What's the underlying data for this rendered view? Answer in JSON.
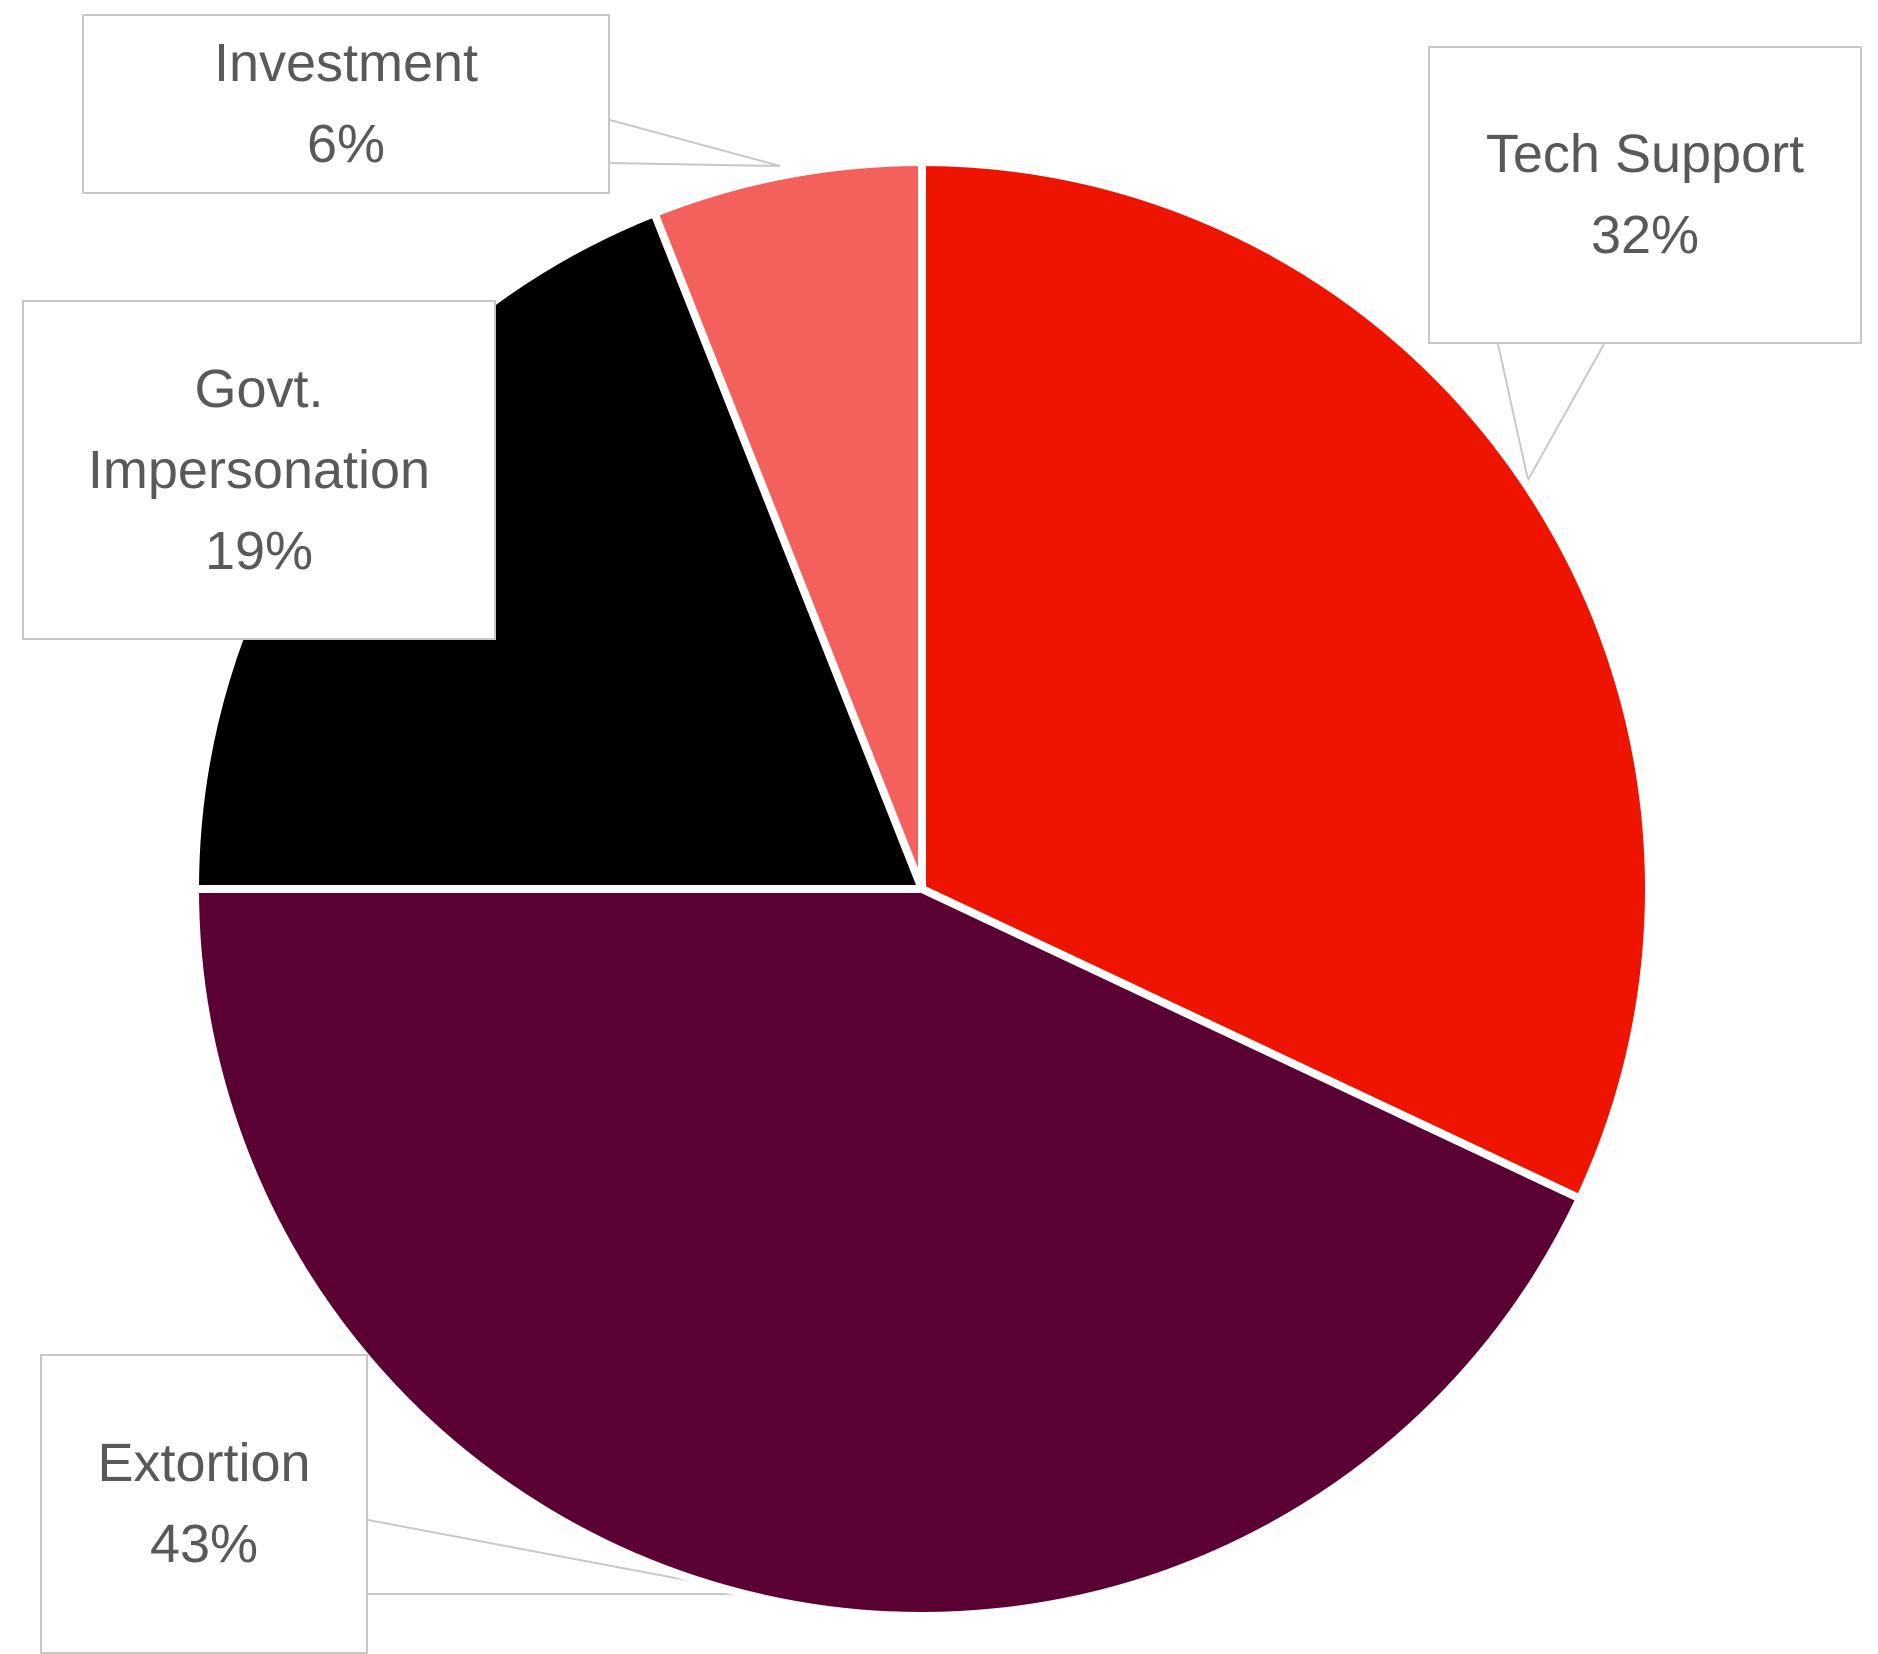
{
  "chart_data": {
    "type": "pie",
    "title": "",
    "start_angle_deg": 0,
    "direction": "clockwise",
    "slice_border_color": "#ffffff",
    "slices": [
      {
        "label": "Tech Support",
        "value": 32,
        "value_label": "32%",
        "color": "#EE1400"
      },
      {
        "label": "Extortion",
        "value": 43,
        "value_label": "43%",
        "color": "#5A0032"
      },
      {
        "label": "Govt. Impersonation",
        "label_lines": [
          "Govt.",
          "Impersonation"
        ],
        "value": 19,
        "value_label": "19%",
        "color": "#000000"
      },
      {
        "label": "Investment",
        "value": 6,
        "value_label": "6%",
        "color": "#F4605C"
      }
    ],
    "legend": "none",
    "data_labels": "callouts"
  }
}
